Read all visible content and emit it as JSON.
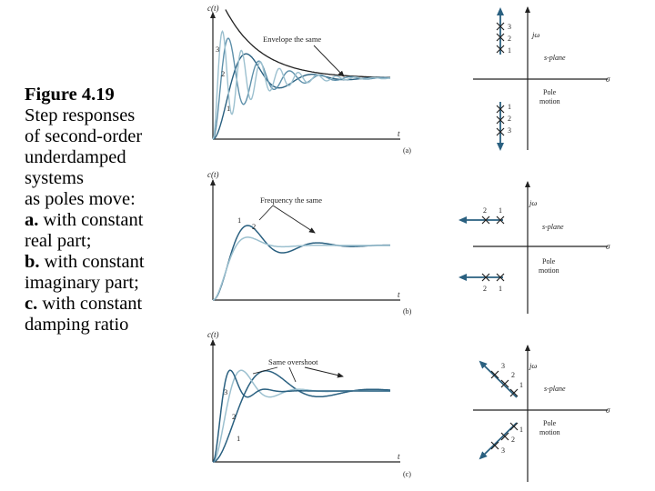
{
  "caption": {
    "title": "Figure 4.19",
    "line1": "Step responses",
    "line2": "of second-order",
    "line3": "underdamped",
    "line4": "systems",
    "line5": "as poles move:",
    "a_label": "a.",
    "a_text": " with constant",
    "a_text2": "real part;",
    "b_label": "b.",
    "b_text": " with constant",
    "b_text2": "imaginary part;",
    "c_label": "c.",
    "c_text": " with constant",
    "c_text2": "damping ratio"
  },
  "panel_a": {
    "ylabel": "c(t)",
    "xlabel": "t",
    "annotation": "Envelope the same",
    "curve_labels": [
      "1",
      "2",
      "3"
    ],
    "tag": "(a)",
    "splane": {
      "jw": "jω",
      "sigma": "σ",
      "plane": "s-plane",
      "motion_line1": "Pole",
      "motion_line2": "motion",
      "pole_labels": [
        "1",
        "2",
        "3"
      ]
    }
  },
  "panel_b": {
    "ylabel": "c(t)",
    "xlabel": "t",
    "annotation": "Frequency the same",
    "curve_labels": [
      "1",
      "2"
    ],
    "tag": "(b)",
    "splane": {
      "jw": "jω",
      "sigma": "σ",
      "plane": "s-plane",
      "motion_line1": "Pole",
      "motion_line2": "motion",
      "pole_labels": [
        "2",
        "1"
      ]
    }
  },
  "panel_c": {
    "ylabel": "c(t)",
    "xlabel": "t",
    "annotation": "Same overshoot",
    "curve_labels": [
      "3",
      "2",
      "1"
    ],
    "tag": "(c)",
    "splane": {
      "jw": "jω",
      "sigma": "σ",
      "plane": "s-plane",
      "motion_line1": "Pole",
      "motion_line2": "motion",
      "pole_labels": [
        "3",
        "2",
        "1"
      ]
    }
  },
  "colors": {
    "curve_dark": "#2a6080",
    "curve_mid": "#5e90aa",
    "curve_light": "#9cc0cf",
    "axis": "#222222"
  }
}
